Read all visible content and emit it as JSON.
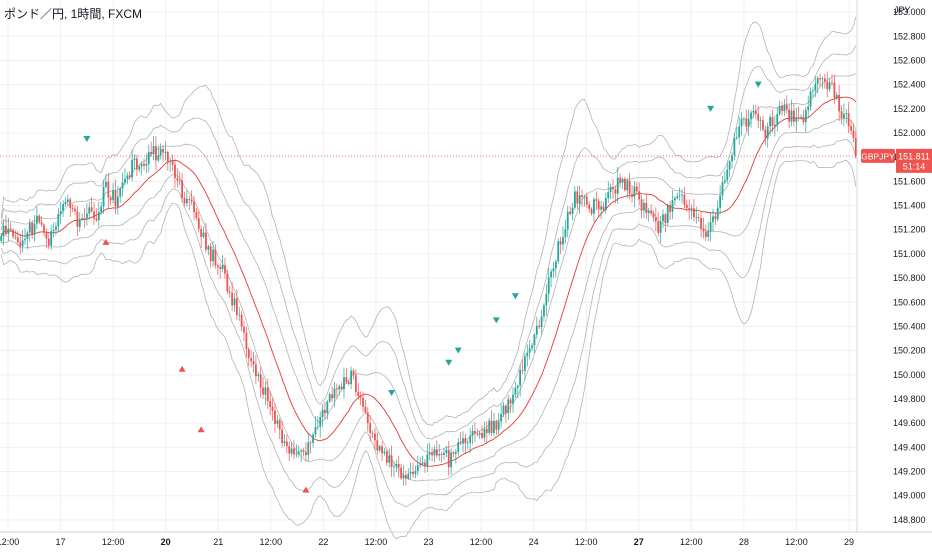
{
  "header": {
    "title": "ポンド／円, 1時間, FXCM"
  },
  "colors": {
    "up": "#26a69a",
    "down": "#ef5350",
    "basis": "#e53935",
    "band": "#b4b4b4",
    "grid": "#eef0f3",
    "price_line": "#ef5350",
    "badge": "#ef5350"
  },
  "price_badge": {
    "symbol": "GBPJPY",
    "price": "151.811",
    "countdown": "51:14"
  },
  "chart_data": {
    "type": "candlestick",
    "currency_label": "JPY",
    "ylim": [
      148.7,
      153.1
    ],
    "y_ticks": [
      153.0,
      152.8,
      152.6,
      152.4,
      152.2,
      152.0,
      151.8,
      151.6,
      151.4,
      151.2,
      151.0,
      150.8,
      150.6,
      150.4,
      150.2,
      150.0,
      149.8,
      149.6,
      149.4,
      149.2,
      149.0,
      148.8
    ],
    "y_tick_labels": [
      "153.000",
      "152.800",
      "152.600",
      "152.400",
      "152.200",
      "152.000",
      "151.800",
      "151.600",
      "151.400",
      "151.200",
      "151.000",
      "150.800",
      "150.600",
      "150.400",
      "150.200",
      "150.000",
      "149.800",
      "149.600",
      "149.400",
      "149.200",
      "149.000",
      "148.800"
    ],
    "x_tick_labels": [
      {
        "label": "12:00",
        "bold": false
      },
      {
        "label": "17",
        "bold": false
      },
      {
        "label": "12:00",
        "bold": false
      },
      {
        "label": "20",
        "bold": true
      },
      {
        "label": "21",
        "bold": false
      },
      {
        "label": "12:00",
        "bold": false
      },
      {
        "label": "22",
        "bold": false
      },
      {
        "label": "12:00",
        "bold": false
      },
      {
        "label": "23",
        "bold": false
      },
      {
        "label": "12:00",
        "bold": false
      },
      {
        "label": "24",
        "bold": false
      },
      {
        "label": "12:00",
        "bold": false
      },
      {
        "label": "27",
        "bold": true
      },
      {
        "label": "12:00",
        "bold": false
      },
      {
        "label": "28",
        "bold": false
      },
      {
        "label": "12:00",
        "bold": false
      },
      {
        "label": "29",
        "bold": false
      }
    ],
    "last_price": 151.811,
    "price_path": [
      [
        0,
        151.15
      ],
      [
        4,
        151.25
      ],
      [
        8,
        151.05
      ],
      [
        12,
        151.2
      ],
      [
        16,
        151.3
      ],
      [
        20,
        151.1
      ],
      [
        24,
        151.35
      ],
      [
        28,
        151.45
      ],
      [
        32,
        151.25
      ],
      [
        36,
        151.4
      ],
      [
        40,
        151.3
      ],
      [
        44,
        151.55
      ],
      [
        48,
        151.45
      ],
      [
        52,
        151.65
      ],
      [
        56,
        151.75
      ],
      [
        60,
        151.7
      ],
      [
        64,
        151.85
      ],
      [
        68,
        151.8
      ],
      [
        72,
        151.75
      ],
      [
        76,
        151.5
      ],
      [
        80,
        151.4
      ],
      [
        84,
        151.2
      ],
      [
        88,
        151.0
      ],
      [
        92,
        150.9
      ],
      [
        96,
        150.7
      ],
      [
        100,
        150.45
      ],
      [
        104,
        150.2
      ],
      [
        108,
        150.0
      ],
      [
        112,
        149.8
      ],
      [
        116,
        149.6
      ],
      [
        120,
        149.4
      ],
      [
        124,
        149.3
      ],
      [
        128,
        149.4
      ],
      [
        132,
        149.55
      ],
      [
        136,
        149.7
      ],
      [
        140,
        149.85
      ],
      [
        144,
        149.95
      ],
      [
        148,
        150.0
      ],
      [
        152,
        149.7
      ],
      [
        156,
        149.5
      ],
      [
        160,
        149.35
      ],
      [
        164,
        149.3
      ],
      [
        168,
        149.2
      ],
      [
        172,
        149.15
      ],
      [
        176,
        149.2
      ],
      [
        180,
        149.3
      ],
      [
        184,
        149.35
      ],
      [
        188,
        149.3
      ],
      [
        192,
        149.4
      ],
      [
        196,
        149.5
      ],
      [
        200,
        149.45
      ],
      [
        204,
        149.55
      ],
      [
        208,
        149.6
      ],
      [
        212,
        149.75
      ],
      [
        216,
        149.9
      ],
      [
        220,
        150.1
      ],
      [
        224,
        150.3
      ],
      [
        228,
        150.6
      ],
      [
        232,
        150.9
      ],
      [
        236,
        151.2
      ],
      [
        240,
        151.45
      ],
      [
        244,
        151.5
      ],
      [
        248,
        151.4
      ],
      [
        252,
        151.35
      ],
      [
        256,
        151.5
      ],
      [
        260,
        151.6
      ],
      [
        264,
        151.55
      ],
      [
        268,
        151.45
      ],
      [
        272,
        151.3
      ],
      [
        276,
        151.2
      ],
      [
        280,
        151.35
      ],
      [
        284,
        151.45
      ],
      [
        288,
        151.4
      ],
      [
        292,
        151.25
      ],
      [
        296,
        151.2
      ],
      [
        300,
        151.3
      ],
      [
        304,
        151.6
      ],
      [
        308,
        151.9
      ],
      [
        312,
        152.1
      ],
      [
        316,
        152.15
      ],
      [
        320,
        152.0
      ],
      [
        324,
        152.1
      ],
      [
        328,
        152.2
      ],
      [
        332,
        152.15
      ],
      [
        336,
        152.1
      ],
      [
        340,
        152.3
      ],
      [
        344,
        152.45
      ],
      [
        348,
        152.4
      ],
      [
        352,
        152.2
      ],
      [
        356,
        152.1
      ],
      [
        360,
        151.8
      ]
    ],
    "up_markers": [
      [
        44,
        151.1
      ],
      [
        76,
        150.05
      ],
      [
        84,
        149.55
      ],
      [
        128,
        149.05
      ]
    ],
    "down_markers": [
      [
        36,
        151.95
      ],
      [
        164,
        149.85
      ],
      [
        188,
        150.1
      ],
      [
        192,
        150.2
      ],
      [
        208,
        150.45
      ],
      [
        216,
        150.65
      ],
      [
        298,
        152.2
      ],
      [
        318,
        152.4
      ]
    ]
  }
}
